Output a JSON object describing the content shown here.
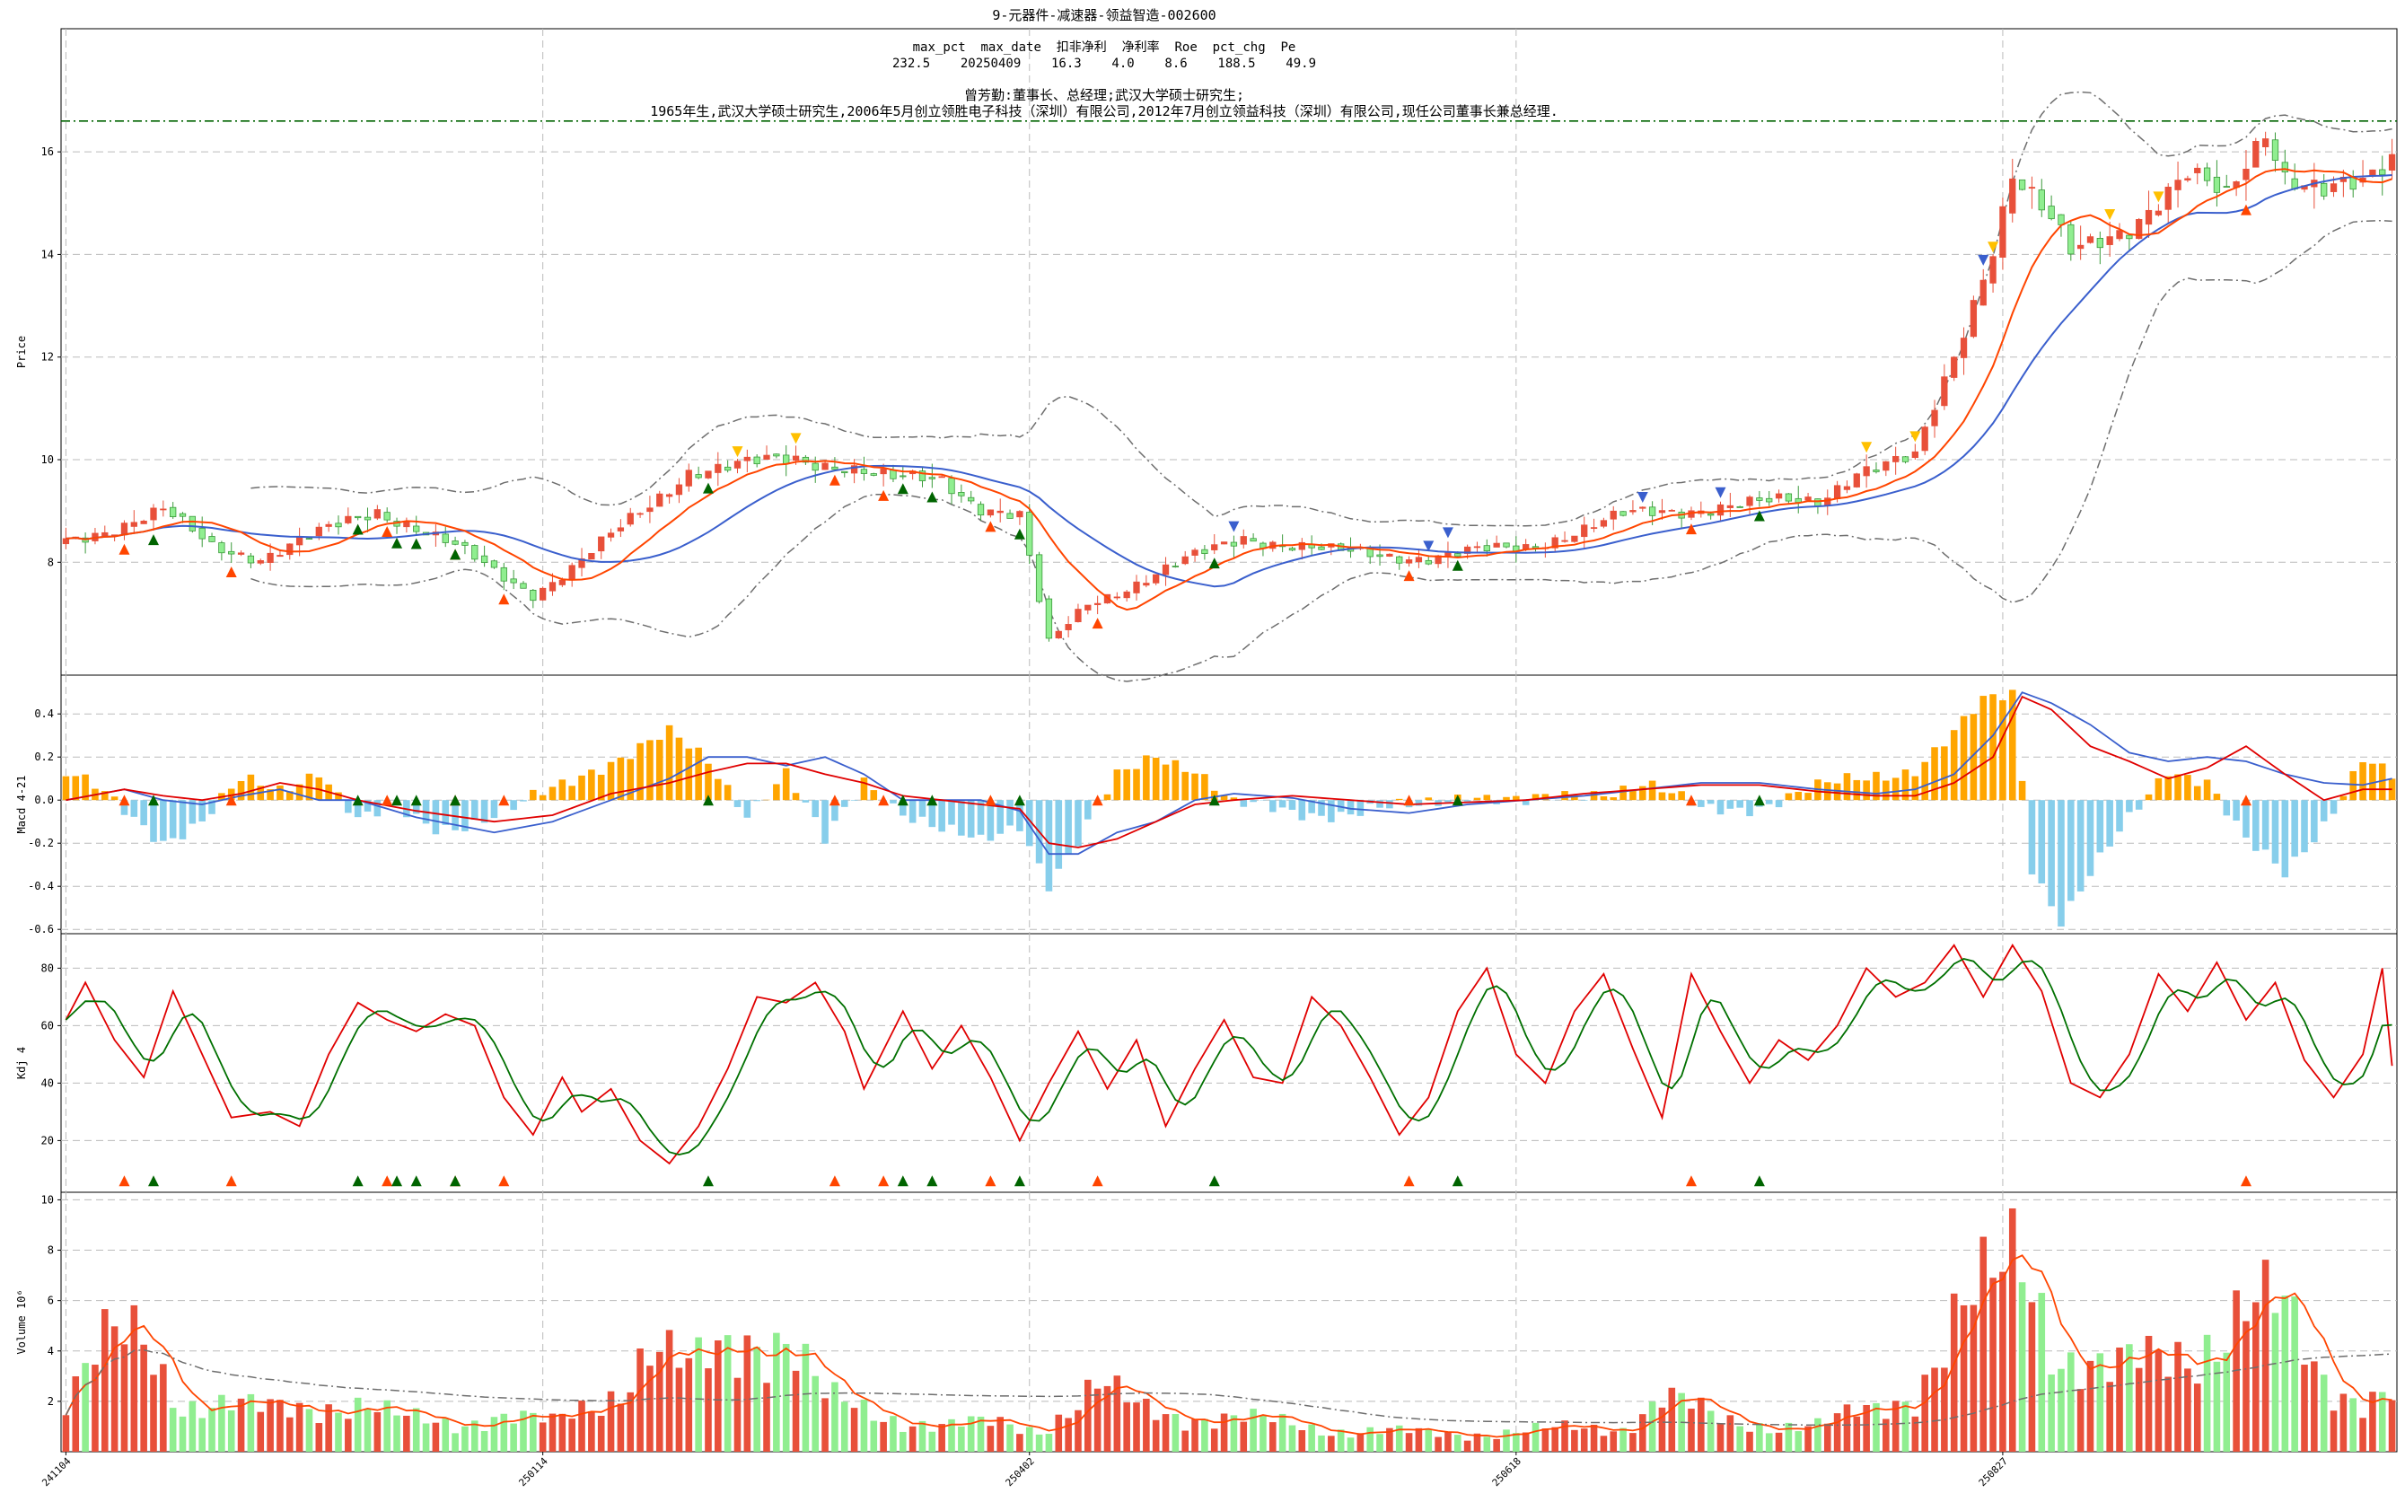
{
  "title": "9-元器件-减速器-领益智造-002600",
  "info": {
    "header": "max_pct  max_date  扣非净利  净利率  Roe  pct_chg  Pe",
    "values": "232.5    20250409    16.3    4.0    8.6    188.5    49.9",
    "person": "曾芳勤:董事长、总经理;武汉大学硕士研究生;",
    "bio": "1965年生,武汉大学硕士研究生,2006年5月创立领胜电子科技（深圳）有限公司,2012年7月创立领益科技（深圳）有限公司,现任公司董事长兼总经理."
  },
  "colors": {
    "up": "#e8503a",
    "down": "#90ee90",
    "ma_blue": "#3a5fcd",
    "ma_orange": "#ff4500",
    "band": "#6e6e6e",
    "hline": "#006400",
    "macd_pos": "#ffa500",
    "macd_neg": "#87ceeb",
    "dif": "#3a5fcd",
    "dea": "#e00000",
    "kdj_k": "#e00000",
    "kdj_d": "#007000",
    "tri_up": "#ff4500",
    "tri_green": "#006400",
    "tri_down": "#3a5fcd",
    "tri_gold": "#ffc000"
  },
  "chart_data": {
    "type": "candlestick",
    "n_days": 240,
    "x_tick_labels": [
      "241104",
      "250114",
      "250402",
      "250618",
      "250827"
    ],
    "x_tick_index": [
      0,
      49,
      99,
      149,
      199
    ],
    "panels": [
      {
        "name": "price",
        "ylabel": "Price",
        "ylim": [
          5.8,
          18.4
        ],
        "yticks": [
          8,
          10,
          12,
          14,
          16
        ],
        "hline": 16.6
      },
      {
        "name": "macd",
        "ylabel": "Macd 4-21",
        "ylim": [
          -0.62,
          0.58
        ],
        "yticks": [
          -0.6,
          -0.4,
          -0.2,
          0.0,
          0.2,
          0.4
        ],
        "ytick_labels": [
          "-0.6",
          "-0.4",
          "-0.2",
          "0.0",
          "0.2",
          "0.4"
        ]
      },
      {
        "name": "kdj",
        "ylabel": "Kdj 4",
        "ylim": [
          2,
          92
        ],
        "yticks": [
          20,
          40,
          60,
          80
        ]
      },
      {
        "name": "volume",
        "ylabel": "Volume  10⁶",
        "ylim": [
          0,
          10.3
        ],
        "yticks": [
          2,
          4,
          6,
          8,
          10
        ]
      }
    ],
    "close_anchors": [
      [
        0,
        8.4
      ],
      [
        10,
        9.0
      ],
      [
        15,
        8.3
      ],
      [
        20,
        8.1
      ],
      [
        28,
        8.7
      ],
      [
        32,
        9.0
      ],
      [
        36,
        8.7
      ],
      [
        40,
        8.3
      ],
      [
        44,
        7.8
      ],
      [
        48,
        7.4
      ],
      [
        52,
        7.9
      ],
      [
        56,
        8.5
      ],
      [
        60,
        9.1
      ],
      [
        64,
        9.8
      ],
      [
        70,
        9.9
      ],
      [
        75,
        10.0
      ],
      [
        80,
        9.9
      ],
      [
        85,
        9.6
      ],
      [
        90,
        9.6
      ],
      [
        94,
        9.1
      ],
      [
        98,
        8.9
      ],
      [
        101,
        6.4
      ],
      [
        105,
        7.2
      ],
      [
        110,
        7.6
      ],
      [
        116,
        8.1
      ],
      [
        121,
        8.5
      ],
      [
        130,
        8.2
      ],
      [
        140,
        8.1
      ],
      [
        150,
        8.3
      ],
      [
        155,
        8.6
      ],
      [
        160,
        8.9
      ],
      [
        170,
        9.1
      ],
      [
        180,
        9.2
      ],
      [
        184,
        9.8
      ],
      [
        190,
        10.0
      ],
      [
        194,
        12.0
      ],
      [
        198,
        14.2
      ],
      [
        200,
        15.6
      ],
      [
        204,
        14.6
      ],
      [
        206,
        14.0
      ],
      [
        212,
        14.6
      ],
      [
        218,
        15.5
      ],
      [
        222,
        15.1
      ],
      [
        226,
        16.5
      ],
      [
        228,
        15.6
      ],
      [
        232,
        15.2
      ],
      [
        236,
        15.3
      ],
      [
        239,
        15.9
      ]
    ],
    "volume_anchors": [
      [
        0,
        2.0
      ],
      [
        4,
        4.0
      ],
      [
        8,
        4.6
      ],
      [
        12,
        2.0
      ],
      [
        20,
        1.6
      ],
      [
        26,
        2.0
      ],
      [
        30,
        1.8
      ],
      [
        34,
        1.3
      ],
      [
        40,
        1.2
      ],
      [
        44,
        1.4
      ],
      [
        50,
        1.1
      ],
      [
        56,
        2.4
      ],
      [
        60,
        4.0
      ],
      [
        64,
        3.0
      ],
      [
        70,
        5.0
      ],
      [
        74,
        4.5
      ],
      [
        78,
        2.0
      ],
      [
        84,
        1.5
      ],
      [
        90,
        1.0
      ],
      [
        96,
        1.1
      ],
      [
        100,
        0.9
      ],
      [
        106,
        2.5
      ],
      [
        110,
        1.7
      ],
      [
        120,
        1.3
      ],
      [
        130,
        0.9
      ],
      [
        140,
        0.7
      ],
      [
        150,
        0.8
      ],
      [
        160,
        1.0
      ],
      [
        164,
        2.2
      ],
      [
        170,
        1.2
      ],
      [
        180,
        1.0
      ],
      [
        186,
        1.7
      ],
      [
        190,
        2.5
      ],
      [
        194,
        5.0
      ],
      [
        198,
        6.2
      ],
      [
        201,
        8.0
      ],
      [
        205,
        4.2
      ],
      [
        210,
        3.0
      ],
      [
        214,
        3.5
      ],
      [
        218,
        4.2
      ],
      [
        224,
        5.5
      ],
      [
        228,
        5.2
      ],
      [
        232,
        3.0
      ],
      [
        236,
        2.2
      ],
      [
        239,
        2.3
      ]
    ],
    "kdj_k_anchors": [
      [
        0,
        62
      ],
      [
        2,
        75
      ],
      [
        5,
        55
      ],
      [
        8,
        42
      ],
      [
        11,
        72
      ],
      [
        14,
        50
      ],
      [
        17,
        28
      ],
      [
        21,
        30
      ],
      [
        24,
        25
      ],
      [
        27,
        50
      ],
      [
        30,
        68
      ],
      [
        33,
        62
      ],
      [
        36,
        58
      ],
      [
        39,
        64
      ],
      [
        42,
        60
      ],
      [
        45,
        35
      ],
      [
        48,
        22
      ],
      [
        51,
        42
      ],
      [
        53,
        30
      ],
      [
        56,
        38
      ],
      [
        59,
        20
      ],
      [
        62,
        12
      ],
      [
        65,
        25
      ],
      [
        68,
        45
      ],
      [
        71,
        70
      ],
      [
        74,
        68
      ],
      [
        77,
        75
      ],
      [
        80,
        58
      ],
      [
        82,
        38
      ],
      [
        86,
        65
      ],
      [
        89,
        45
      ],
      [
        92,
        60
      ],
      [
        95,
        42
      ],
      [
        98,
        20
      ],
      [
        101,
        40
      ],
      [
        104,
        58
      ],
      [
        107,
        38
      ],
      [
        110,
        55
      ],
      [
        113,
        25
      ],
      [
        116,
        45
      ],
      [
        119,
        62
      ],
      [
        122,
        42
      ],
      [
        125,
        40
      ],
      [
        128,
        70
      ],
      [
        131,
        60
      ],
      [
        134,
        42
      ],
      [
        137,
        22
      ],
      [
        140,
        35
      ],
      [
        143,
        65
      ],
      [
        146,
        80
      ],
      [
        149,
        50
      ],
      [
        152,
        40
      ],
      [
        155,
        65
      ],
      [
        158,
        78
      ],
      [
        161,
        52
      ],
      [
        164,
        28
      ],
      [
        167,
        78
      ],
      [
        170,
        58
      ],
      [
        173,
        40
      ],
      [
        176,
        55
      ],
      [
        179,
        48
      ],
      [
        182,
        60
      ],
      [
        185,
        80
      ],
      [
        188,
        70
      ],
      [
        191,
        75
      ],
      [
        194,
        88
      ],
      [
        197,
        70
      ],
      [
        200,
        88
      ],
      [
        203,
        72
      ],
      [
        206,
        40
      ],
      [
        209,
        35
      ],
      [
        212,
        50
      ],
      [
        215,
        78
      ],
      [
        218,
        65
      ],
      [
        221,
        82
      ],
      [
        224,
        62
      ],
      [
        227,
        75
      ],
      [
        230,
        48
      ],
      [
        233,
        35
      ],
      [
        236,
        50
      ],
      [
        238,
        80
      ],
      [
        239,
        46
      ]
    ],
    "macd_anchors": [
      [
        0,
        0.12
      ],
      [
        3,
        0.05
      ],
      [
        6,
        -0.05
      ],
      [
        10,
        -0.18
      ],
      [
        14,
        -0.1
      ],
      [
        18,
        0.08
      ],
      [
        22,
        0.05
      ],
      [
        26,
        0.15
      ],
      [
        30,
        -0.1
      ],
      [
        34,
        -0.05
      ],
      [
        38,
        -0.12
      ],
      [
        42,
        -0.1
      ],
      [
        46,
        -0.05
      ],
      [
        50,
        0.05
      ],
      [
        54,
        0.15
      ],
      [
        58,
        0.22
      ],
      [
        62,
        0.3
      ],
      [
        66,
        0.18
      ],
      [
        70,
        -0.05
      ],
      [
        74,
        0.12
      ],
      [
        78,
        -0.2
      ],
      [
        82,
        0.1
      ],
      [
        86,
        -0.05
      ],
      [
        90,
        -0.15
      ],
      [
        94,
        -0.2
      ],
      [
        98,
        -0.1
      ],
      [
        101,
        -0.38
      ],
      [
        104,
        -0.2
      ],
      [
        108,
        0.1
      ],
      [
        112,
        0.22
      ],
      [
        116,
        0.15
      ],
      [
        120,
        -0.03
      ],
      [
        126,
        -0.05
      ],
      [
        132,
        -0.06
      ],
      [
        138,
        -0.04
      ],
      [
        144,
        0.04
      ],
      [
        150,
        -0.02
      ],
      [
        156,
        0.03
      ],
      [
        162,
        0.08
      ],
      [
        168,
        -0.05
      ],
      [
        174,
        -0.02
      ],
      [
        180,
        0.05
      ],
      [
        186,
        0.12
      ],
      [
        190,
        0.15
      ],
      [
        194,
        0.3
      ],
      [
        197,
        0.45
      ],
      [
        200,
        0.5
      ],
      [
        202,
        -0.3
      ],
      [
        205,
        -0.55
      ],
      [
        208,
        -0.35
      ],
      [
        212,
        -0.1
      ],
      [
        216,
        0.15
      ],
      [
        220,
        0.1
      ],
      [
        224,
        -0.2
      ],
      [
        228,
        -0.35
      ],
      [
        232,
        -0.1
      ],
      [
        236,
        0.2
      ],
      [
        239,
        0.1
      ]
    ],
    "dif_anchors": [
      [
        0,
        0.0
      ],
      [
        6,
        0.05
      ],
      [
        10,
        0.0
      ],
      [
        14,
        -0.02
      ],
      [
        18,
        0.02
      ],
      [
        22,
        0.05
      ],
      [
        26,
        0.0
      ],
      [
        30,
        0.0
      ],
      [
        36,
        -0.08
      ],
      [
        44,
        -0.15
      ],
      [
        50,
        -0.1
      ],
      [
        56,
        0.0
      ],
      [
        62,
        0.1
      ],
      [
        66,
        0.2
      ],
      [
        70,
        0.2
      ],
      [
        74,
        0.16
      ],
      [
        78,
        0.2
      ],
      [
        82,
        0.12
      ],
      [
        86,
        0.0
      ],
      [
        90,
        0.0
      ],
      [
        94,
        0.0
      ],
      [
        98,
        -0.05
      ],
      [
        101,
        -0.25
      ],
      [
        104,
        -0.25
      ],
      [
        108,
        -0.15
      ],
      [
        112,
        -0.1
      ],
      [
        116,
        0.0
      ],
      [
        120,
        0.03
      ],
      [
        126,
        0.01
      ],
      [
        132,
        -0.04
      ],
      [
        138,
        -0.06
      ],
      [
        144,
        -0.02
      ],
      [
        150,
        0.0
      ],
      [
        156,
        0.02
      ],
      [
        162,
        0.05
      ],
      [
        168,
        0.08
      ],
      [
        174,
        0.08
      ],
      [
        180,
        0.05
      ],
      [
        186,
        0.03
      ],
      [
        190,
        0.05
      ],
      [
        194,
        0.12
      ],
      [
        198,
        0.3
      ],
      [
        201,
        0.5
      ],
      [
        204,
        0.45
      ],
      [
        208,
        0.35
      ],
      [
        212,
        0.22
      ],
      [
        216,
        0.18
      ],
      [
        220,
        0.2
      ],
      [
        224,
        0.18
      ],
      [
        228,
        0.12
      ],
      [
        232,
        0.08
      ],
      [
        236,
        0.07
      ],
      [
        239,
        0.1
      ]
    ],
    "dea_anchors": [
      [
        0,
        0.0
      ],
      [
        6,
        0.05
      ],
      [
        10,
        0.02
      ],
      [
        14,
        0.0
      ],
      [
        18,
        0.03
      ],
      [
        22,
        0.08
      ],
      [
        26,
        0.05
      ],
      [
        30,
        0.0
      ],
      [
        36,
        -0.05
      ],
      [
        44,
        -0.1
      ],
      [
        50,
        -0.07
      ],
      [
        56,
        0.03
      ],
      [
        62,
        0.08
      ],
      [
        66,
        0.13
      ],
      [
        70,
        0.17
      ],
      [
        74,
        0.17
      ],
      [
        78,
        0.12
      ],
      [
        82,
        0.08
      ],
      [
        86,
        0.02
      ],
      [
        90,
        0.0
      ],
      [
        94,
        -0.02
      ],
      [
        98,
        -0.04
      ],
      [
        101,
        -0.2
      ],
      [
        104,
        -0.22
      ],
      [
        108,
        -0.18
      ],
      [
        112,
        -0.1
      ],
      [
        116,
        -0.02
      ],
      [
        120,
        0.0
      ],
      [
        126,
        0.02
      ],
      [
        132,
        0.0
      ],
      [
        138,
        -0.02
      ],
      [
        144,
        -0.01
      ],
      [
        150,
        0.0
      ],
      [
        156,
        0.03
      ],
      [
        162,
        0.05
      ],
      [
        168,
        0.07
      ],
      [
        174,
        0.07
      ],
      [
        180,
        0.04
      ],
      [
        186,
        0.02
      ],
      [
        190,
        0.02
      ],
      [
        194,
        0.08
      ],
      [
        198,
        0.2
      ],
      [
        201,
        0.48
      ],
      [
        204,
        0.42
      ],
      [
        208,
        0.25
      ],
      [
        212,
        0.18
      ],
      [
        216,
        0.1
      ],
      [
        220,
        0.15
      ],
      [
        224,
        0.25
      ],
      [
        228,
        0.12
      ],
      [
        232,
        0.0
      ],
      [
        236,
        0.05
      ],
      [
        239,
        0.05
      ]
    ],
    "tri_up_red": [
      6,
      17,
      33,
      40,
      45,
      79,
      84,
      95,
      106,
      138,
      167,
      224
    ],
    "tri_up_green": [
      9,
      30,
      34,
      36,
      40,
      66,
      86,
      89,
      98,
      118,
      143,
      174
    ],
    "tri_down_blue": [
      120,
      140,
      142,
      162,
      170,
      197
    ],
    "tri_gold": [
      69,
      75,
      185,
      190,
      198,
      210,
      215
    ]
  }
}
